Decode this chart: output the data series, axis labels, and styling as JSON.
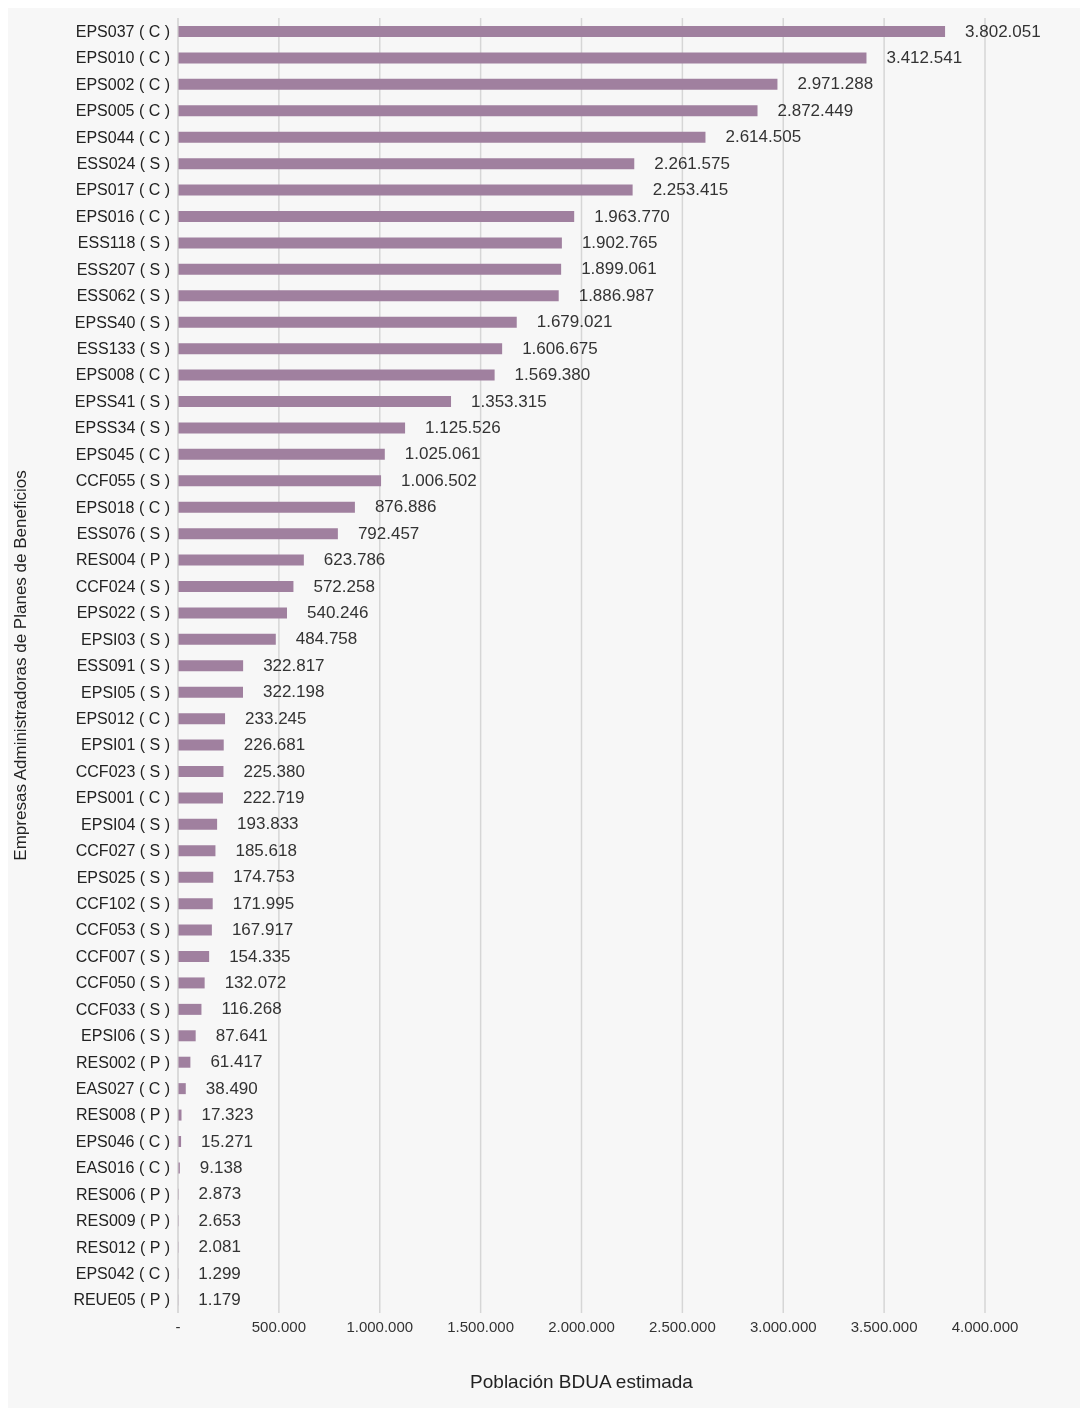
{
  "chart_data": {
    "type": "bar",
    "orientation": "horizontal",
    "xlabel": "Población BDUA estimada",
    "ylabel": "Empresas Administradoras de Planes de Beneficios",
    "categories": [
      "EPS037 ( C )",
      "EPS010 ( C )",
      "EPS002 ( C )",
      "EPS005 ( C )",
      "EPS044 ( C )",
      "ESS024 ( S )",
      "EPS017 ( C )",
      "EPS016 ( C )",
      "ESS118 ( S )",
      "ESS207 ( S )",
      "ESS062 ( S )",
      "EPSS40 ( S )",
      "ESS133 ( S )",
      "EPS008 ( C )",
      "EPSS41 ( S )",
      "EPSS34 ( S )",
      "EPS045 ( C )",
      "CCF055 ( S )",
      "EPS018 ( C )",
      "ESS076 ( S )",
      "RES004 ( P )",
      "CCF024 ( S )",
      "EPS022 ( S )",
      "EPSI03 ( S )",
      "ESS091 ( S )",
      "EPSI05 ( S )",
      "EPS012 ( C )",
      "EPSI01 ( S )",
      "CCF023 ( S )",
      "EPS001 ( C )",
      "EPSI04 ( S )",
      "CCF027 ( S )",
      "EPS025 ( S )",
      "CCF102 ( S )",
      "CCF053 ( S )",
      "CCF007 ( S )",
      "CCF050 ( S )",
      "CCF033 ( S )",
      "EPSI06 ( S )",
      "RES002 ( P )",
      "EAS027 ( C )",
      "RES008 ( P )",
      "EPS046 ( C )",
      "EAS016 ( C )",
      "RES006 ( P )",
      "RES009 ( P )",
      "RES012 ( P )",
      "EPS042 ( C )",
      "REUE05 ( P )"
    ],
    "values": [
      3802051,
      3412541,
      2971288,
      2872449,
      2614505,
      2261575,
      2253415,
      1963770,
      1902765,
      1899061,
      1886987,
      1679021,
      1606675,
      1569380,
      1353315,
      1125526,
      1025061,
      1006502,
      876886,
      792457,
      623786,
      572258,
      540246,
      484758,
      322817,
      322198,
      233245,
      226681,
      225380,
      222719,
      193833,
      185618,
      174753,
      171995,
      167917,
      154335,
      132072,
      116268,
      87641,
      61417,
      38490,
      17323,
      15271,
      9138,
      2873,
      2653,
      2081,
      1299,
      1179
    ],
    "value_labels": [
      "3.802.051",
      "3.412.541",
      "2.971.288",
      "2.872.449",
      "2.614.505",
      "2.261.575",
      "2.253.415",
      "1.963.770",
      "1.902.765",
      "1.899.061",
      "1.886.987",
      "1.679.021",
      "1.606.675",
      "1.569.380",
      "1.353.315",
      "1.125.526",
      "1.025.061",
      "1.006.502",
      "876.886",
      "792.457",
      "623.786",
      "572.258",
      "540.246",
      "484.758",
      "322.817",
      "322.198",
      "233.245",
      "226.681",
      "225.380",
      "222.719",
      "193.833",
      "185.618",
      "174.753",
      "171.995",
      "167.917",
      "154.335",
      "132.072",
      "116.268",
      "87.641",
      "61.417",
      "38.490",
      "17.323",
      "15.271",
      "9.138",
      "2.873",
      "2.653",
      "2.081",
      "1.299",
      "1.179"
    ],
    "color": "#a0809f",
    "xlim": [
      0,
      4000000
    ],
    "xticks": [
      {
        "value": 0,
        "label": "-"
      },
      {
        "value": 500000,
        "label": "500.000"
      },
      {
        "value": 1000000,
        "label": "1.000.000"
      },
      {
        "value": 1500000,
        "label": "1.500.000"
      },
      {
        "value": 2000000,
        "label": "2.000.000"
      },
      {
        "value": 2500000,
        "label": "2.500.000"
      },
      {
        "value": 3000000,
        "label": "3.000.000"
      },
      {
        "value": 3500000,
        "label": "3.500.000"
      },
      {
        "value": 4000000,
        "label": "4.000.000"
      }
    ],
    "grid": "x",
    "legend": false
  }
}
